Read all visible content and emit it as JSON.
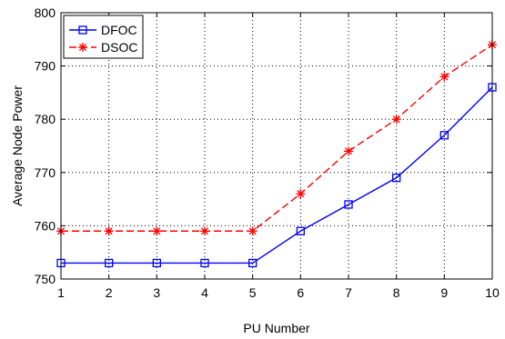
{
  "chart_data": {
    "type": "line",
    "title": "",
    "xlabel": "PU Number",
    "ylabel": "Average Node Power",
    "x": [
      1,
      2,
      3,
      4,
      5,
      6,
      7,
      8,
      9,
      10
    ],
    "xlim": [
      1,
      10
    ],
    "ylim": [
      750,
      800
    ],
    "xticks": [
      1,
      2,
      3,
      4,
      5,
      6,
      7,
      8,
      9,
      10
    ],
    "yticks": [
      750,
      760,
      770,
      780,
      790,
      800
    ],
    "grid": true,
    "legend_position": "top-left",
    "series": [
      {
        "name": "DFOC",
        "values": [
          753,
          753,
          753,
          753,
          753,
          759,
          764,
          769,
          777,
          786
        ],
        "color": "#0000ff",
        "line_style": "solid",
        "marker": "square"
      },
      {
        "name": "DSOC",
        "values": [
          759,
          759,
          759,
          759,
          759,
          766,
          774,
          780,
          788,
          794
        ],
        "color": "#ff0000",
        "line_style": "dashed",
        "marker": "asterisk"
      }
    ]
  }
}
